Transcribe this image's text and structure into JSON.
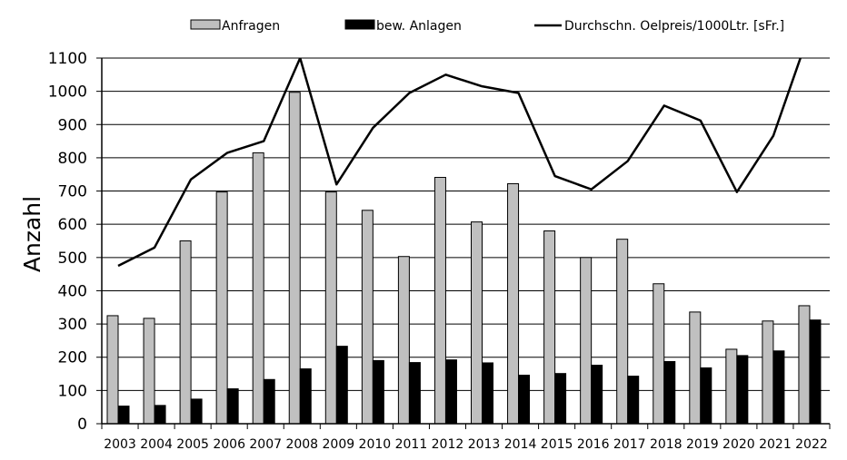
{
  "chart_data": {
    "type": "bar",
    "title": "",
    "xlabel": "",
    "ylabel": "Anzahl",
    "ylim": [
      0,
      1100
    ],
    "yticks": [
      0,
      100,
      200,
      300,
      400,
      500,
      600,
      700,
      800,
      900,
      1000,
      1100
    ],
    "grid": true,
    "legend_position": "top",
    "categories": [
      "2003",
      "2004",
      "2005",
      "2006",
      "2007",
      "2008",
      "2009",
      "2010",
      "2011",
      "2012",
      "2013",
      "2014",
      "2015",
      "2016",
      "2017",
      "2018",
      "2019",
      "2020",
      "2021",
      "2022"
    ],
    "series": [
      {
        "name": "Anfragen",
        "type": "bar",
        "color": "#c0c0c0",
        "values": [
          325,
          317,
          550,
          697,
          815,
          997,
          697,
          642,
          503,
          741,
          607,
          722,
          580,
          500,
          555,
          421,
          336,
          224,
          309,
          355
        ]
      },
      {
        "name": "bew. Anlagen",
        "type": "bar",
        "color": "#000000",
        "values": [
          53,
          55,
          74,
          105,
          133,
          165,
          233,
          190,
          184,
          192,
          183,
          146,
          151,
          176,
          143,
          187,
          168,
          205,
          219,
          312
        ]
      },
      {
        "name": "Durchschn. Oelpreis/1000Ltr. [sFr.]",
        "type": "line",
        "color": "#000000",
        "values": [
          475,
          530,
          735,
          815,
          850,
          1100,
          720,
          890,
          995,
          1050,
          1015,
          995,
          745,
          705,
          790,
          957,
          912,
          697,
          866,
          1180
        ]
      }
    ]
  }
}
